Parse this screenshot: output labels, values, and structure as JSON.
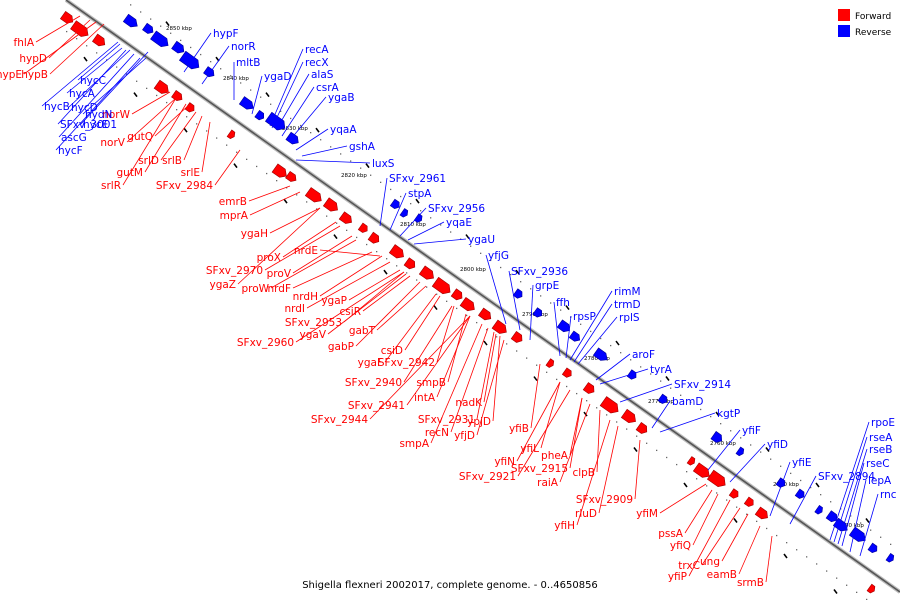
{
  "caption": "Shigella flexneri 2002017, complete genome. - 0..4650856",
  "legend": {
    "forward": {
      "label": "Forward",
      "color": "#ff0000"
    },
    "reverse": {
      "label": "Reverse",
      "color": "#0000ff"
    }
  },
  "ticks": [
    "2850 kbp",
    "2840 kbp",
    "2830 kbp",
    "2820 kbp",
    "2810 kbp",
    "2800 kbp",
    "2790 kbp",
    "2780 kbp",
    "2770 kbp",
    "2760 kbp",
    "2750 kbp",
    "2740 kbp"
  ],
  "forward_labels": [
    "fhlA",
    "hypD",
    "hypE",
    "hypB",
    "norW",
    "norV",
    "gutQ",
    "srlD",
    "gutM",
    "srlB",
    "srlR",
    "srlE",
    "SFxv_2984",
    "emrB",
    "mprA",
    "ygaH",
    "proX",
    "SFxv_2970",
    "ygaZ",
    "proV",
    "proW",
    "nrdE",
    "nrdF",
    "nrdH",
    "nrdI",
    "ygaP",
    "SFxv_2953",
    "csiR",
    "ygaV",
    "gabT",
    "SFxv_2960",
    "gabP",
    "csiD",
    "ygaF",
    "SFxv_2942",
    "SFxv_2940",
    "smpB",
    "intA",
    "SFxv_2941",
    "nadK",
    "SFxv_2944",
    "ypjD",
    "SFxv_2931",
    "recN",
    "yfjD",
    "smpA",
    "yfiB",
    "yfiL",
    "pheA",
    "yfiN",
    "SFxv_2915",
    "raiA",
    "clpB",
    "SFxv_2921",
    "SFxv_2909",
    "rluD",
    "yfiH",
    "yfiM",
    "pssA",
    "yfiQ",
    "trxC",
    "yfiP",
    "ung",
    "eamB",
    "srmB"
  ],
  "reverse_labels": [
    "hypF",
    "norR",
    "mltB",
    "ygaD",
    "recA",
    "recX",
    "alaS",
    "csrA",
    "ygaB",
    "hycC",
    "hycA",
    "hycE",
    "hycB",
    "hycD",
    "hydN",
    "SFxv_3001",
    "ascG",
    "hycF",
    "yqaA",
    "gshA",
    "luxS",
    "SFxv_2961",
    "stpA",
    "SFxv_2956",
    "yqaE",
    "ygaU",
    "yfjG",
    "SFxv_2936",
    "grpE",
    "ffh",
    "rpsP",
    "rimM",
    "trmD",
    "rplS",
    "aroF",
    "tyrA",
    "SFxv_2914",
    "bamD",
    "kgtP",
    "yfiF",
    "yfiD",
    "yfiE",
    "SFxv_2894",
    "rpoE",
    "rseA",
    "rseB",
    "rseC",
    "lepA",
    "rnc"
  ]
}
